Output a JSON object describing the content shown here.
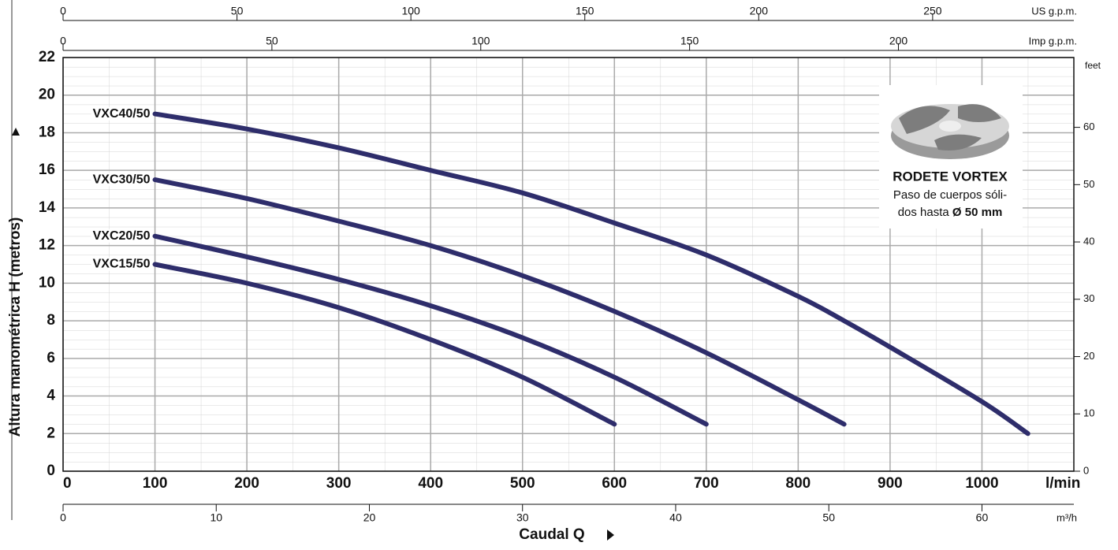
{
  "chart_data": {
    "type": "line",
    "x_label": "Caudal Q",
    "x_unit": "l/min",
    "y_label": "Altura manométrica H  (metros)",
    "xlim": [
      0,
      1100
    ],
    "xticks": [
      0,
      100,
      200,
      300,
      400,
      500,
      600,
      700,
      800,
      900,
      1000
    ],
    "ylim": [
      0,
      22
    ],
    "yticks": [
      0,
      2,
      4,
      6,
      8,
      10,
      12,
      14,
      16,
      18,
      20,
      22
    ],
    "y2_label": "feet",
    "y2lim": [
      0,
      72.18
    ],
    "y2ticks": [
      0,
      10,
      20,
      30,
      40,
      50,
      60
    ],
    "grid": true,
    "x2_axes": [
      {
        "label": "US g.p.m.",
        "xlim": [
          0,
          290.6
        ],
        "xticks": [
          0,
          50,
          100,
          150,
          200,
          250
        ]
      },
      {
        "label": "Imp g.p.m.",
        "xlim": [
          0,
          242
        ],
        "xticks": [
          0,
          50,
          100,
          150,
          200
        ]
      },
      {
        "label": "m³/h",
        "xlim": [
          0,
          66
        ],
        "xticks": [
          0,
          10,
          20,
          30,
          40,
          50,
          60
        ]
      }
    ],
    "series": [
      {
        "name": "VXC40/50",
        "color": "#2e2d6b",
        "x": [
          100,
          200,
          300,
          400,
          500,
          600,
          700,
          800,
          850,
          900,
          1000,
          1050
        ],
        "values": [
          19,
          18.2,
          17.2,
          16,
          14.8,
          13.2,
          11.5,
          9.3,
          8,
          6.6,
          3.7,
          2
        ]
      },
      {
        "name": "VXC30/50",
        "color": "#2e2d6b",
        "x": [
          100,
          200,
          300,
          400,
          500,
          600,
          700,
          800,
          850
        ],
        "values": [
          15.5,
          14.5,
          13.3,
          12,
          10.4,
          8.5,
          6.3,
          3.8,
          2.5
        ]
      },
      {
        "name": "VXC20/50",
        "color": "#2e2d6b",
        "x": [
          100,
          200,
          300,
          400,
          500,
          600,
          700
        ],
        "values": [
          12.5,
          11.4,
          10.2,
          8.8,
          7.1,
          5,
          2.5
        ]
      },
      {
        "name": "VXC15/50",
        "color": "#2e2d6b",
        "x": [
          100,
          200,
          300,
          400,
          500,
          600
        ],
        "values": [
          11,
          10,
          8.7,
          7,
          5,
          2.5
        ]
      }
    ],
    "annotation": {
      "title": "RODETE VORTEX",
      "line1": "Paso de cuerpos sóli-",
      "line2": "dos hasta ",
      "bold": "Ø 50 mm"
    }
  }
}
